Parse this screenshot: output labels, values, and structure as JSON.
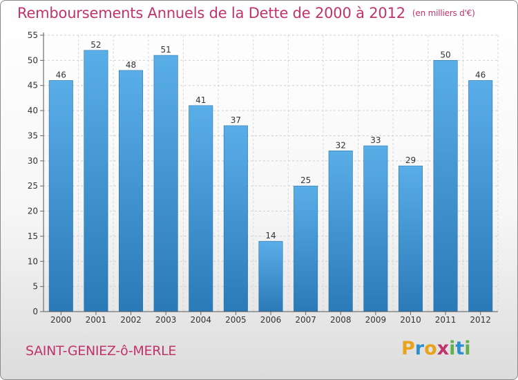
{
  "header": {
    "title": "Remboursements Annuels de la Dette de 2000 à 2012",
    "unit": "(en milliers d'€)"
  },
  "footer": {
    "commune": "SAINT-GENIEZ-ô-MERLE",
    "logo_letters": [
      "P",
      "r",
      "o",
      "x",
      "i",
      "t",
      "i"
    ],
    "logo_colors": [
      "#e8a21c",
      "#2b8fd0",
      "#e8a21c",
      "#c0336b",
      "#62b04a",
      "#2b8fd0",
      "#62b04a"
    ]
  },
  "chart_data": {
    "type": "bar",
    "title": "Remboursements Annuels de la Dette de 2000 à 2012",
    "ylabel": "(en milliers d'€)",
    "xlabel": "",
    "categories": [
      "2000",
      "2001",
      "2002",
      "2003",
      "2004",
      "2005",
      "2006",
      "2007",
      "2008",
      "2009",
      "2010",
      "2011",
      "2012"
    ],
    "values": [
      46,
      52,
      48,
      51,
      41,
      37,
      14,
      25,
      32,
      33,
      29,
      50,
      46
    ],
    "ylim": [
      0,
      55
    ],
    "yticks": [
      0,
      5,
      10,
      15,
      20,
      25,
      30,
      35,
      40,
      45,
      50,
      55
    ],
    "grid": true,
    "bar_color_top": "#5aaee8",
    "bar_color_bottom": "#2a7ab8"
  }
}
